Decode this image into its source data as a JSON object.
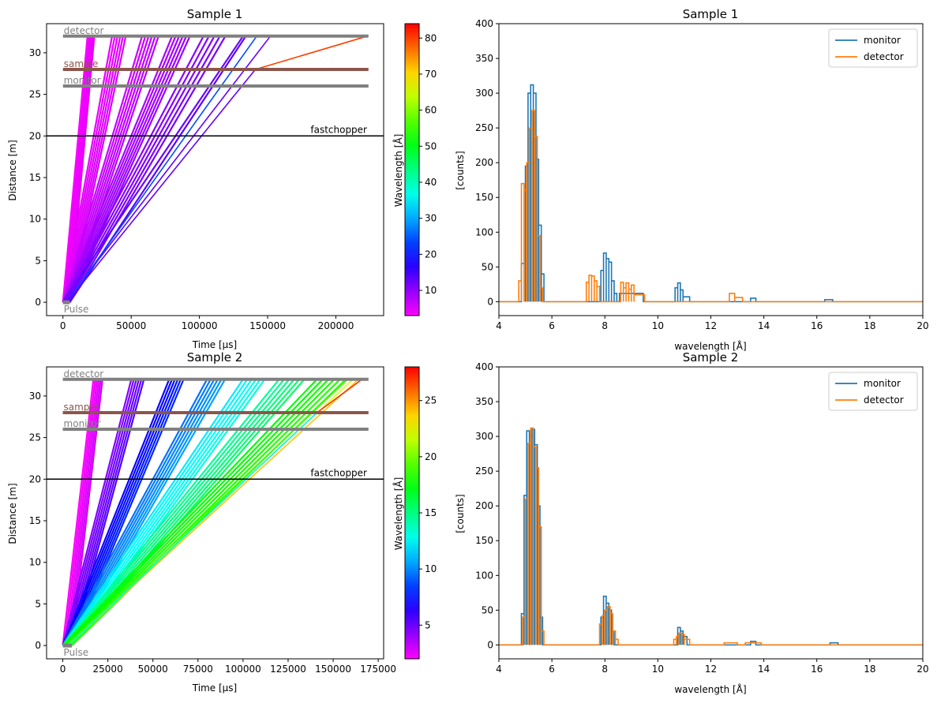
{
  "chart_data": [
    {
      "type": "line",
      "title": "Sample 1",
      "xlabel": "Time [µs]",
      "ylabel": "Distance [m]",
      "xlim": [
        -12000,
        235000
      ],
      "ylim": [
        -1.6,
        33.5
      ],
      "xticks": [
        0,
        50000,
        100000,
        150000,
        200000
      ],
      "yticks": [
        0,
        5,
        10,
        15,
        20,
        25,
        30
      ],
      "colorbar": {
        "label": "Wavelength [Å]",
        "min": 3,
        "max": 84,
        "ticks": [
          10,
          20,
          30,
          40,
          50,
          60,
          70,
          80
        ]
      },
      "components": [
        {
          "name": "detector",
          "distance": 32,
          "color": "#808080"
        },
        {
          "name": "sample",
          "distance": 28,
          "color": "#8c564b"
        },
        {
          "name": "monitor",
          "distance": 26,
          "color": "#808080"
        },
        {
          "name": "fastchopper",
          "distance": 20,
          "color": "#000000"
        },
        {
          "name": "Pulse",
          "distance": 0,
          "color": "#808080"
        }
      ],
      "pulse": {
        "t0": 0,
        "t1": 5000
      },
      "bundles": [
        {
          "t_det": [
            18000,
            23000
          ],
          "wavelength": 4,
          "count": 6
        },
        {
          "t_det": [
            36000,
            46000
          ],
          "wavelength": 5,
          "count": 6
        },
        {
          "t_det": [
            58000,
            70000
          ],
          "wavelength": 7,
          "count": 6
        },
        {
          "t_det": [
            80000,
            93000
          ],
          "wavelength": 9,
          "count": 6
        },
        {
          "t_det": [
            103000,
            119000
          ],
          "wavelength": 11,
          "count": 5
        },
        {
          "t_det": [
            132000,
            134000
          ],
          "wavelength": 13,
          "count": 2
        }
      ],
      "rays": [
        {
          "t0": 2000,
          "t_det": 152000,
          "wavelength": 13
        },
        {
          "t0": 3000,
          "t_det": 142000,
          "wavelength": 24
        },
        {
          "t0": 3000,
          "t_sample": 141000,
          "t_det": 223000,
          "wavelength": 80
        }
      ]
    },
    {
      "type": "step",
      "title": "Sample 1",
      "xlabel": "wavelength [Å]",
      "ylabel": "[counts]",
      "xlim": [
        4,
        20
      ],
      "ylim": [
        -20,
        400
      ],
      "xticks": [
        4,
        6,
        8,
        10,
        12,
        14,
        16,
        18,
        20
      ],
      "yticks": [
        0,
        50,
        100,
        150,
        200,
        250,
        300,
        350,
        400
      ],
      "legend": "top-right",
      "series": [
        {
          "name": "monitor",
          "color": "#1f77b4",
          "peaks": [
            [
              4.85,
              5.0,
              55
            ],
            [
              5.0,
              5.1,
              195
            ],
            [
              5.1,
              5.2,
              300
            ],
            [
              5.2,
              5.3,
              312
            ],
            [
              5.3,
              5.4,
              300
            ],
            [
              5.4,
              5.5,
              205
            ],
            [
              5.5,
              5.6,
              110
            ],
            [
              5.6,
              5.7,
              40
            ],
            [
              7.85,
              7.95,
              45
            ],
            [
              7.95,
              8.05,
              70
            ],
            [
              8.05,
              8.15,
              62
            ],
            [
              8.15,
              8.25,
              57
            ],
            [
              8.25,
              8.35,
              30
            ],
            [
              8.35,
              8.45,
              12
            ],
            [
              8.55,
              9.45,
              12
            ],
            [
              10.65,
              10.75,
              20
            ],
            [
              10.75,
              10.85,
              27
            ],
            [
              10.85,
              10.95,
              17
            ],
            [
              10.95,
              11.2,
              7
            ],
            [
              13.5,
              13.7,
              5
            ],
            [
              16.3,
              16.6,
              3
            ]
          ]
        },
        {
          "name": "detector",
          "color": "#ff7f0e",
          "peaks": [
            [
              4.75,
              4.85,
              30
            ],
            [
              4.85,
              4.95,
              170
            ],
            [
              4.95,
              5.05,
              160
            ],
            [
              5.05,
              5.15,
              200
            ],
            [
              5.15,
              5.25,
              250
            ],
            [
              5.25,
              5.35,
              275
            ],
            [
              5.35,
              5.45,
              238
            ],
            [
              5.45,
              5.55,
              95
            ],
            [
              5.55,
              5.65,
              20
            ],
            [
              7.3,
              7.4,
              28
            ],
            [
              7.4,
              7.5,
              38
            ],
            [
              7.5,
              7.6,
              37
            ],
            [
              7.6,
              7.7,
              30
            ],
            [
              7.7,
              7.8,
              22
            ],
            [
              8.6,
              8.7,
              28
            ],
            [
              8.7,
              8.8,
              20
            ],
            [
              8.8,
              8.9,
              27
            ],
            [
              8.9,
              9.0,
              18
            ],
            [
              9.0,
              9.1,
              24
            ],
            [
              9.1,
              9.5,
              10
            ],
            [
              12.7,
              12.9,
              12
            ],
            [
              12.9,
              13.2,
              6
            ]
          ]
        }
      ]
    },
    {
      "type": "line",
      "title": "Sample 2",
      "xlabel": "Time [µs]",
      "ylabel": "Distance [m]",
      "xlim": [
        -9000,
        178000
      ],
      "ylim": [
        -1.6,
        33.5
      ],
      "xticks": [
        0,
        25000,
        50000,
        75000,
        100000,
        125000,
        150000,
        175000
      ],
      "yticks": [
        0,
        5,
        10,
        15,
        20,
        25,
        30
      ],
      "colorbar": {
        "label": "Wavelength [Å]",
        "min": 2,
        "max": 28,
        "ticks": [
          5,
          10,
          15,
          20,
          25
        ]
      },
      "components": [
        {
          "name": "detector",
          "distance": 32,
          "color": "#808080"
        },
        {
          "name": "sample",
          "distance": 28,
          "color": "#8c564b"
        },
        {
          "name": "monitor",
          "distance": 26,
          "color": "#808080"
        },
        {
          "name": "fastchopper",
          "distance": 20,
          "color": "#000000"
        },
        {
          "name": "Pulse",
          "distance": 0,
          "color": "#808080"
        }
      ],
      "pulse": {
        "t0": 0,
        "t1": 5000
      },
      "bundles": [
        {
          "t_det": [
            17000,
            22000
          ],
          "wavelength": 2.5,
          "count": 6
        },
        {
          "t_det": [
            38000,
            45000
          ],
          "wavelength": 5,
          "count": 6
        },
        {
          "t_det": [
            59000,
            67000
          ],
          "wavelength": 7.5,
          "count": 6
        },
        {
          "t_det": [
            80000,
            90000
          ],
          "wavelength": 10,
          "count": 6
        },
        {
          "t_det": [
            100000,
            112000
          ],
          "wavelength": 12.5,
          "count": 6
        },
        {
          "t_det": [
            120000,
            134000
          ],
          "wavelength": 15,
          "count": 6
        },
        {
          "t_det": [
            141000,
            157000
          ],
          "wavelength": 18,
          "count": 6
        }
      ],
      "rays": [
        {
          "t0": 2000,
          "t_det": 158000,
          "wavelength": 19
        },
        {
          "t0": 3000,
          "t_det": 161000,
          "wavelength": 22
        },
        {
          "t0": 3000,
          "t_det": 164000,
          "wavelength": 24
        },
        {
          "t0": 3000,
          "t_sample": 141000,
          "t_det": 166000,
          "wavelength": 27
        }
      ]
    },
    {
      "type": "step",
      "title": "Sample 2",
      "xlabel": "wavelength [Å]",
      "ylabel": "[counts]",
      "xlim": [
        4,
        20
      ],
      "ylim": [
        -20,
        400
      ],
      "xticks": [
        4,
        6,
        8,
        10,
        12,
        14,
        16,
        18,
        20
      ],
      "yticks": [
        0,
        50,
        100,
        150,
        200,
        250,
        300,
        350,
        400
      ],
      "legend": "top-right",
      "series": [
        {
          "name": "monitor",
          "color": "#1f77b4",
          "peaks": [
            [
              4.85,
              4.95,
              45
            ],
            [
              4.95,
              5.05,
              215
            ],
            [
              5.05,
              5.15,
              308
            ],
            [
              5.15,
              5.25,
              300
            ],
            [
              5.25,
              5.35,
              310
            ],
            [
              5.35,
              5.45,
              288
            ],
            [
              5.45,
              5.55,
              200
            ],
            [
              5.55,
              5.65,
              40
            ],
            [
              7.85,
              7.95,
              40
            ],
            [
              7.95,
              8.05,
              70
            ],
            [
              8.05,
              8.15,
              60
            ],
            [
              8.15,
              8.25,
              50
            ],
            [
              8.25,
              8.35,
              20
            ],
            [
              10.75,
              10.85,
              25
            ],
            [
              10.85,
              10.95,
              20
            ],
            [
              10.95,
              11.1,
              12
            ],
            [
              13.5,
              13.7,
              5
            ],
            [
              16.5,
              16.8,
              3
            ]
          ]
        },
        {
          "name": "detector",
          "color": "#ff7f0e",
          "peaks": [
            [
              4.9,
              5.0,
              40
            ],
            [
              5.0,
              5.1,
              210
            ],
            [
              5.1,
              5.2,
              290
            ],
            [
              5.2,
              5.3,
              312
            ],
            [
              5.3,
              5.4,
              285
            ],
            [
              5.4,
              5.5,
              255
            ],
            [
              5.5,
              5.6,
              170
            ],
            [
              5.6,
              5.7,
              20
            ],
            [
              7.8,
              7.9,
              30
            ],
            [
              7.9,
              8.0,
              42
            ],
            [
              8.0,
              8.1,
              50
            ],
            [
              8.1,
              8.2,
              55
            ],
            [
              8.2,
              8.3,
              45
            ],
            [
              8.3,
              8.4,
              20
            ],
            [
              8.4,
              8.5,
              8
            ],
            [
              10.6,
              10.7,
              8
            ],
            [
              10.7,
              10.8,
              12
            ],
            [
              10.8,
              10.9,
              17
            ],
            [
              10.9,
              11.0,
              15
            ],
            [
              11.0,
              11.2,
              8
            ],
            [
              12.5,
              13.0,
              3
            ],
            [
              13.3,
              13.9,
              3
            ]
          ]
        }
      ]
    }
  ]
}
